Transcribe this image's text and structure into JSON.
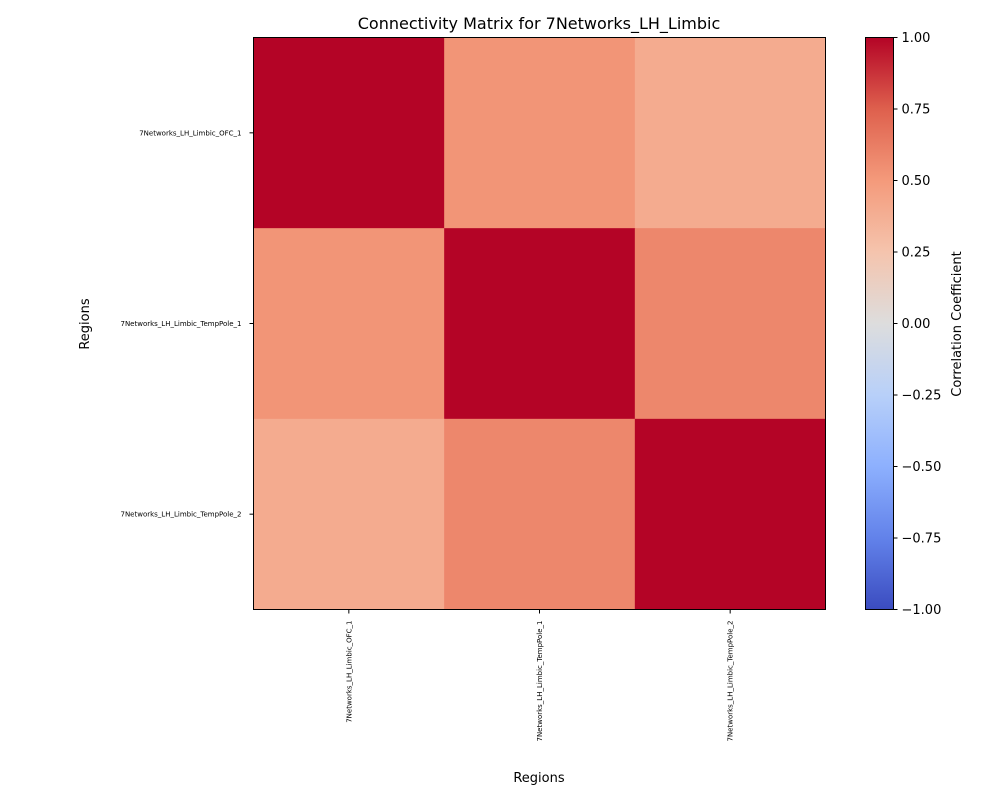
{
  "chart_data": {
    "type": "heatmap",
    "title": "Connectivity Matrix for 7Networks_LH_Limbic",
    "xlabel": "Regions",
    "ylabel": "Regions",
    "rows": [
      "7Networks_LH_Limbic_OFC_1",
      "7Networks_LH_Limbic_TempPole_1",
      "7Networks_LH_Limbic_TempPole_2"
    ],
    "columns": [
      "7Networks_LH_Limbic_OFC_1",
      "7Networks_LH_Limbic_TempPole_1",
      "7Networks_LH_Limbic_TempPole_2"
    ],
    "values": [
      [
        1.0,
        0.52,
        0.4
      ],
      [
        0.52,
        1.0,
        0.58
      ],
      [
        0.4,
        0.58,
        1.0
      ]
    ],
    "colormap": "coolwarm",
    "vmin": -1.0,
    "vmax": 1.0,
    "colorbar": {
      "label": "Correlation Coefficient",
      "ticks": [
        -1.0,
        -0.75,
        -0.5,
        -0.25,
        0.0,
        0.25,
        0.5,
        0.75,
        1.0
      ],
      "tick_labels": [
        "−1.00",
        "−0.75",
        "−0.50",
        "−0.25",
        "0.00",
        "0.25",
        "0.50",
        "0.75",
        "1.00"
      ]
    }
  }
}
